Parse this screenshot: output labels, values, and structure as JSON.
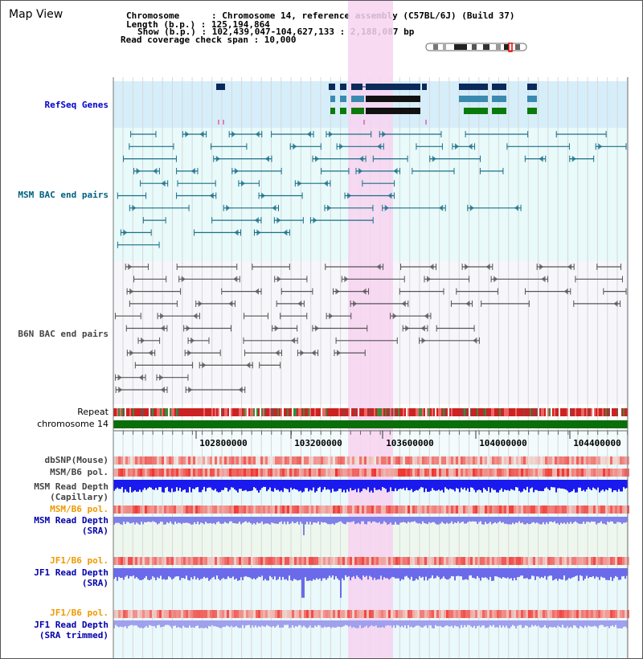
{
  "title": "Map View",
  "info": {
    "chromosome": "Chromosome      : Chromosome 14, reference assembly (C57BL/6J) (Build 37)",
    "length": "Length (b.p.) : 125,194,864",
    "show": "Show (b.p.) : 102,439,047-104,627,133 : 2,188,087 bp",
    "coverage": "Read coverage check span : 10,000"
  },
  "tracks": {
    "refseq": "RefSeq Genes",
    "msm_bac": "MSM BAC end pairs",
    "b6n_bac": "B6N BAC end pairs",
    "repeat": "Repeat",
    "chromosome": "chromosome 14",
    "dbsnp": "dbSNP(Mouse)",
    "msm_b6_pol_1": "MSM/B6 pol.",
    "msm_read_depth_cap_1": "MSM Read Depth",
    "msm_read_depth_cap_2": "(Capillary)",
    "msm_b6_pol_2": "MSM/B6 pol.",
    "msm_read_depth_sra_1": "MSM Read Depth",
    "msm_read_depth_sra_2": "(SRA)",
    "jf1_b6_pol_1": "JF1/B6 pol.",
    "jf1_read_depth_sra_1": "JF1 Read Depth",
    "jf1_read_depth_sra_2": "(SRA)",
    "jf1_b6_pol_2": "JF1/B6 pol.",
    "jf1_read_depth_trim_1": "JF1 Read Depth",
    "jf1_read_depth_trim_2": "(SRA trimmed)"
  },
  "axis": {
    "ticks": [
      "102800000",
      "103200000",
      "103600000",
      "104000000",
      "104400000"
    ]
  },
  "colors": {
    "refseq_label": "#0000cc",
    "msm_label": "#006080",
    "b6n_label": "#444444",
    "orange_label": "#ee9900",
    "blue_label": "#0000aa",
    "highlight": "#f7d4f0",
    "gene_dark": "#0a2a5a",
    "gene_mid": "#3a8ab0",
    "gene_green": "#0a7a0a"
  }
}
